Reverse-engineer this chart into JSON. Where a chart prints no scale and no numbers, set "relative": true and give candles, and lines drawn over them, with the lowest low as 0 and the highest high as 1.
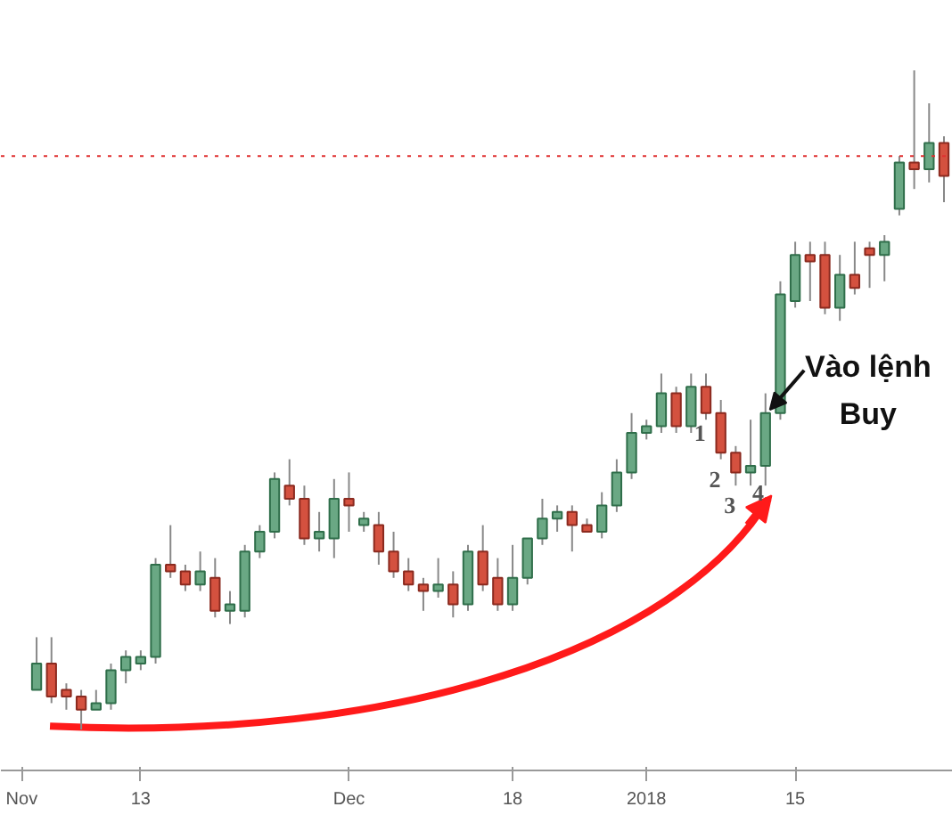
{
  "chart_data": {
    "type": "candlestick",
    "relative": true,
    "categories": [
      "Nov",
      null,
      null,
      null,
      null,
      null,
      null,
      null,
      "13",
      null,
      null,
      null,
      null,
      null,
      null,
      null,
      null,
      null,
      null,
      null,
      null,
      null,
      "Dec",
      null,
      null,
      null,
      null,
      null,
      null,
      null,
      null,
      null,
      null,
      "18",
      null,
      null,
      null,
      null,
      null,
      null,
      null,
      null,
      "2018",
      null,
      null,
      null,
      null,
      null,
      null,
      null,
      null,
      null,
      "15",
      null,
      null,
      null,
      null,
      null,
      null,
      null,
      null,
      null,
      null
    ],
    "ohlc": [
      null,
      [
        0.06,
        0.14,
        0.06,
        0.1
      ],
      [
        0.1,
        0.14,
        0.04,
        0.05
      ],
      [
        0.06,
        0.07,
        0.03,
        0.05
      ],
      [
        0.05,
        0.06,
        0.0,
        0.03
      ],
      [
        0.03,
        0.06,
        0.03,
        0.04
      ],
      [
        0.04,
        0.1,
        0.03,
        0.09
      ],
      [
        0.09,
        0.12,
        0.07,
        0.11
      ],
      [
        0.1,
        0.12,
        0.09,
        0.11
      ],
      [
        0.11,
        0.26,
        0.1,
        0.25
      ],
      [
        0.25,
        0.31,
        0.23,
        0.24
      ],
      [
        0.24,
        0.25,
        0.21,
        0.22
      ],
      [
        0.22,
        0.27,
        0.21,
        0.24
      ],
      [
        0.23,
        0.26,
        0.17,
        0.18
      ],
      [
        0.18,
        0.21,
        0.16,
        0.19
      ],
      [
        0.18,
        0.28,
        0.17,
        0.27
      ],
      [
        0.27,
        0.31,
        0.26,
        0.3
      ],
      [
        0.3,
        0.39,
        0.29,
        0.38
      ],
      [
        0.37,
        0.41,
        0.34,
        0.35
      ],
      [
        0.35,
        0.37,
        0.28,
        0.29
      ],
      [
        0.29,
        0.33,
        0.27,
        0.3
      ],
      [
        0.29,
        0.38,
        0.26,
        0.35
      ],
      [
        0.35,
        0.39,
        0.3,
        0.34
      ],
      [
        0.31,
        0.33,
        0.3,
        0.32
      ],
      [
        0.31,
        0.33,
        0.25,
        0.27
      ],
      [
        0.27,
        0.3,
        0.23,
        0.24
      ],
      [
        0.24,
        0.26,
        0.21,
        0.22
      ],
      [
        0.22,
        0.23,
        0.18,
        0.21
      ],
      [
        0.21,
        0.26,
        0.2,
        0.22
      ],
      [
        0.22,
        0.24,
        0.17,
        0.19
      ],
      [
        0.19,
        0.28,
        0.18,
        0.27
      ],
      [
        0.27,
        0.31,
        0.21,
        0.22
      ],
      [
        0.23,
        0.26,
        0.18,
        0.19
      ],
      [
        0.19,
        0.28,
        0.18,
        0.23
      ],
      [
        0.23,
        0.29,
        0.22,
        0.29
      ],
      [
        0.29,
        0.35,
        0.28,
        0.32
      ],
      [
        0.32,
        0.34,
        0.3,
        0.33
      ],
      [
        0.33,
        0.34,
        0.27,
        0.31
      ],
      [
        0.31,
        0.32,
        0.3,
        0.3
      ],
      [
        0.3,
        0.36,
        0.29,
        0.34
      ],
      [
        0.34,
        0.41,
        0.33,
        0.39
      ],
      [
        0.39,
        0.48,
        0.38,
        0.45
      ],
      [
        0.45,
        0.47,
        0.44,
        0.46
      ],
      [
        0.46,
        0.54,
        0.45,
        0.51
      ],
      [
        0.51,
        0.52,
        0.45,
        0.46
      ],
      [
        0.46,
        0.54,
        0.45,
        0.52
      ],
      [
        0.52,
        0.54,
        0.47,
        0.48
      ],
      [
        0.48,
        0.5,
        0.41,
        0.42
      ],
      [
        0.42,
        0.43,
        0.37,
        0.39
      ],
      [
        0.39,
        0.47,
        0.37,
        0.4
      ],
      [
        0.4,
        0.51,
        0.37,
        0.48
      ],
      [
        0.48,
        0.68,
        0.47,
        0.66
      ],
      [
        0.65,
        0.74,
        0.64,
        0.72
      ],
      [
        0.72,
        0.74,
        0.65,
        0.71
      ],
      [
        0.72,
        0.74,
        0.63,
        0.64
      ],
      [
        0.64,
        0.72,
        0.62,
        0.69
      ],
      [
        0.69,
        0.74,
        0.66,
        0.67
      ],
      [
        0.73,
        0.74,
        0.67,
        0.72
      ],
      [
        0.72,
        0.75,
        0.68,
        0.74
      ],
      [
        0.79,
        0.87,
        0.78,
        0.86
      ],
      [
        0.86,
        1.0,
        0.82,
        0.85
      ],
      [
        0.85,
        0.95,
        0.83,
        0.89
      ],
      [
        0.89,
        0.9,
        0.8,
        0.84
      ]
    ],
    "ref_lines": [
      {
        "axis": "y",
        "value": 0.87,
        "color": "#e03030",
        "line_style": "dotted"
      }
    ],
    "annotations": [
      "1",
      "2",
      "3",
      "4",
      "Vào lệnh\nBuy"
    ]
  }
}
